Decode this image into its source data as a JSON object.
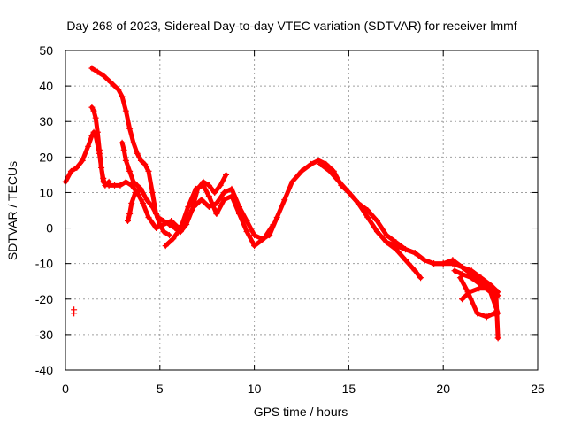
{
  "chart_data": {
    "type": "scatter",
    "title": "Day 268 of 2023, Sidereal Day-to-day VTEC variation (SDTVAR) for receiver lmmf",
    "xlabel": "GPS time / hours",
    "ylabel": "SDTVAR / TECUs",
    "xlim": [
      0,
      25
    ],
    "ylim": [
      -40,
      50
    ],
    "xticks": [
      0,
      5,
      10,
      15,
      20,
      25
    ],
    "yticks": [
      -40,
      -30,
      -20,
      -10,
      0,
      10,
      20,
      30,
      40,
      50
    ],
    "grid": true,
    "marker": "+",
    "color": "#ff0000",
    "series": [
      {
        "name": "main-track",
        "x": [
          0.0,
          0.3,
          0.6,
          0.9,
          1.2,
          1.4,
          1.5,
          1.6,
          1.8,
          2.0,
          2.3,
          2.6,
          2.9,
          3.2,
          3.5,
          3.8,
          4.1,
          4.4,
          4.8,
          5.2,
          5.6,
          6.0,
          6.4,
          6.8,
          7.2,
          7.6,
          8.0,
          8.4,
          8.8,
          9.2,
          9.6,
          10.0,
          10.4,
          10.8,
          11.2,
          11.6,
          12.0,
          12.5,
          13.0,
          13.4,
          13.8,
          14.2,
          14.6,
          15.0,
          15.5,
          16.0,
          16.5,
          17.0,
          17.5,
          18.0,
          18.5,
          19.0,
          19.5,
          20.0,
          20.5,
          21.0,
          21.5,
          22.0,
          22.5,
          22.9
        ],
        "y": [
          13,
          16,
          17,
          19,
          23,
          26,
          27,
          26,
          21,
          13,
          12,
          12,
          12,
          13,
          12,
          10,
          7,
          3,
          0,
          1,
          2,
          0,
          2,
          6,
          8,
          6,
          7,
          10,
          11,
          6,
          2,
          -2,
          -3,
          -2,
          3,
          8,
          13,
          16,
          18,
          19,
          18,
          16,
          12,
          10,
          7,
          3,
          -1,
          -4,
          -5,
          -6,
          -7,
          -9,
          -10,
          -10,
          -9,
          -11,
          -12,
          -14,
          -16,
          -18
        ]
      },
      {
        "name": "upper-track",
        "x": [
          1.4,
          1.7,
          2.0,
          2.4,
          2.8,
          3.0,
          3.2,
          3.4,
          3.6,
          3.8,
          4.0,
          4.2,
          4.4,
          4.6,
          4.8,
          5.0,
          5.2,
          5.5
        ],
        "y": [
          45,
          44,
          43,
          41,
          39,
          37,
          33,
          28,
          24,
          21,
          19,
          18,
          16,
          10,
          4,
          1,
          -1,
          -2
        ]
      },
      {
        "name": "branch-1",
        "x": [
          1.4,
          1.5,
          1.6,
          1.7,
          1.8,
          1.9,
          2.0,
          2.1,
          2.3
        ],
        "y": [
          34,
          33,
          31,
          27,
          22,
          17,
          14,
          12,
          13
        ]
      },
      {
        "name": "branch-2",
        "x": [
          3.0,
          3.1,
          3.2,
          3.4,
          3.6,
          3.8,
          4.0,
          4.3,
          4.6,
          4.9,
          5.2,
          5.5,
          5.8,
          6.1,
          6.4,
          6.7,
          7.0,
          7.3,
          7.6,
          7.9,
          8.2,
          8.5
        ],
        "y": [
          24,
          22,
          19,
          16,
          13,
          12,
          11,
          8,
          6,
          3,
          2,
          1,
          0,
          -1,
          1,
          5,
          11,
          13,
          12,
          10,
          12,
          15
        ]
      },
      {
        "name": "branch-3",
        "x": [
          3.3,
          3.4,
          3.5,
          3.7,
          4.0
        ],
        "y": [
          2,
          4,
          7,
          10,
          11
        ]
      },
      {
        "name": "branch-4",
        "x": [
          5.3,
          5.7,
          6.1,
          6.5,
          6.9,
          7.3,
          7.6,
          8.0,
          8.4,
          8.8,
          9.2,
          9.6,
          10.0,
          10.5,
          11.0
        ],
        "y": [
          -5,
          -3,
          0,
          6,
          11,
          12,
          9,
          4,
          8,
          9,
          4,
          -1,
          -5,
          -3,
          1
        ]
      },
      {
        "name": "branch-5",
        "x": [
          13.5,
          14.0,
          14.5,
          15.0,
          15.5,
          16.0,
          16.5,
          17.0,
          17.5,
          18.0,
          18.5,
          19.0,
          19.5,
          20.0,
          20.5,
          21.0,
          21.5,
          22.0,
          22.5,
          22.9
        ],
        "y": [
          18,
          16,
          13,
          10,
          7,
          5,
          2,
          -2,
          -4,
          -6,
          -7,
          -9,
          -10,
          -10,
          -10,
          -11,
          -13,
          -15,
          -17,
          -19
        ]
      },
      {
        "name": "branch-6",
        "x": [
          17.0,
          17.5,
          18.0,
          18.5,
          18.8
        ],
        "y": [
          -4,
          -6,
          -9,
          -12,
          -14
        ]
      },
      {
        "name": "branch-7",
        "x": [
          20.9,
          21.3,
          21.8,
          22.3,
          22.7
        ],
        "y": [
          -14,
          -18,
          -24,
          -25,
          -24
        ]
      },
      {
        "name": "branch-8",
        "x": [
          21.0,
          21.4,
          21.9,
          22.4,
          22.8,
          22.9
        ],
        "y": [
          -20,
          -18,
          -17,
          -17,
          -19,
          -31
        ]
      },
      {
        "name": "branch-9",
        "x": [
          20.6,
          21.0,
          21.5,
          22.0,
          22.5,
          22.9
        ],
        "y": [
          -12,
          -13,
          -14,
          -16,
          -18,
          -24
        ]
      }
    ],
    "points": [
      {
        "x": 0.45,
        "y": -23
      },
      {
        "x": 0.45,
        "y": -24
      }
    ]
  }
}
